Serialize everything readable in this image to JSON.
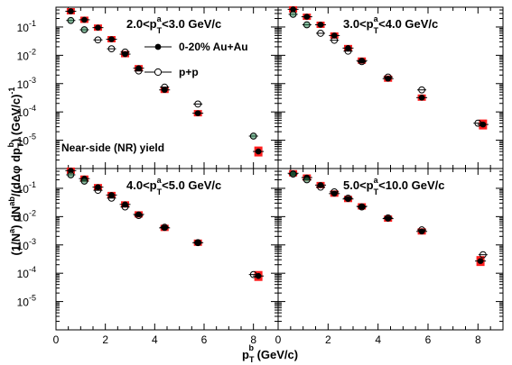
{
  "chart_data": {
    "type": "scatter",
    "layout": "2x2 panels",
    "xlabel": {
      "main": "p",
      "sub": "T",
      "sup": "b",
      "rest": " (GeV/c)"
    },
    "ylabel": {
      "text": "(1/N^a) dN^ab/(dΔφ dp_T^b) (GeV/c)^-1"
    },
    "xlim": [
      0,
      9
    ],
    "ylim": [
      1e-06,
      0.5
    ],
    "y_scale": "log",
    "x_ticks": [
      "0",
      "2",
      "4",
      "6",
      "8"
    ],
    "y_ticks": [
      {
        "value": 1e-05,
        "base": "10",
        "exp": "-5"
      },
      {
        "value": 0.0001,
        "base": "10",
        "exp": "-4"
      },
      {
        "value": 0.001,
        "base": "10",
        "exp": "-3"
      },
      {
        "value": 0.01,
        "base": "10",
        "exp": "-2"
      },
      {
        "value": 0.1,
        "base": "10",
        "exp": "-1"
      }
    ],
    "legend": [
      {
        "label": "0-20% Au+Au",
        "marker": "filled-circle",
        "color": "#000000"
      },
      {
        "label": "p+p",
        "marker": "open-circle",
        "color": "#000000"
      }
    ],
    "legend_position": "top-right of top-left panel",
    "annotation": "Near-side (NR) yield",
    "colors": {
      "syst_box": "#ff1f1f",
      "pp_edge": "#000000",
      "pp_fill_low_pt": "#2e8b57"
    },
    "panels": [
      {
        "label": {
          "lo": "2.0",
          "hi": "3.0 GeV/c",
          "var": "p",
          "sub": "T",
          "sup": "a"
        },
        "auau": {
          "x": [
            0.6,
            1.15,
            1.7,
            2.25,
            2.8,
            3.35,
            4.4,
            5.75,
            8.2
          ],
          "y": [
            0.36,
            0.18,
            0.095,
            0.037,
            0.011,
            0.0035,
            0.0006,
            9e-05,
            4e-06
          ]
        },
        "pp": {
          "x": [
            0.6,
            1.15,
            1.7,
            2.25,
            2.8,
            3.35,
            4.4,
            5.75,
            8.0
          ],
          "y": [
            0.17,
            0.08,
            0.035,
            0.017,
            0.013,
            0.0028,
            0.00075,
            0.00019,
            1.4e-05
          ]
        }
      },
      {
        "label": {
          "lo": "3.0",
          "hi": "4.0 GeV/c",
          "var": "p",
          "sub": "T",
          "sup": "a"
        },
        "auau": {
          "x": [
            0.6,
            1.15,
            1.7,
            2.25,
            2.8,
            3.35,
            4.4,
            5.75,
            8.2
          ],
          "y": [
            0.42,
            0.23,
            0.12,
            0.05,
            0.018,
            0.0065,
            0.0015,
            0.00032,
            3.6e-05
          ]
        },
        "pp": {
          "x": [
            0.6,
            1.15,
            1.7,
            2.25,
            2.8,
            3.35,
            4.4,
            5.75,
            8.0
          ],
          "y": [
            0.28,
            0.12,
            0.06,
            0.034,
            0.014,
            0.006,
            0.0017,
            0.0006,
            4e-05
          ]
        }
      },
      {
        "label": {
          "lo": "4.0",
          "hi": "5.0 GeV/c",
          "var": "p",
          "sub": "T",
          "sup": "a"
        },
        "auau": {
          "x": [
            0.6,
            1.15,
            1.7,
            2.25,
            2.8,
            3.35,
            4.4,
            5.75,
            8.2
          ],
          "y": [
            0.42,
            0.22,
            0.11,
            0.058,
            0.027,
            0.012,
            0.004,
            0.0012,
            8e-05
          ]
        },
        "pp": {
          "x": [
            0.6,
            1.15,
            1.7,
            2.25,
            2.8,
            3.35,
            4.4,
            5.75,
            8.0
          ],
          "y": [
            0.3,
            0.18,
            0.085,
            0.045,
            0.022,
            0.011,
            0.0042,
            0.0012,
            9e-05
          ]
        }
      },
      {
        "label": {
          "lo": "5.0",
          "hi": "10.0 GeV/c",
          "var": "p",
          "sub": "T",
          "sup": "a"
        },
        "auau": {
          "x": [
            0.6,
            1.15,
            1.7,
            2.25,
            2.8,
            3.35,
            4.4,
            5.75,
            8.1
          ],
          "y": [
            0.34,
            0.24,
            0.13,
            0.065,
            0.042,
            0.023,
            0.0085,
            0.003,
            0.00027
          ]
        },
        "pp": {
          "x": [
            0.6,
            1.15,
            1.7,
            2.25,
            2.8,
            3.35,
            4.4,
            5.75,
            8.2
          ],
          "y": [
            0.32,
            0.2,
            0.11,
            0.075,
            0.045,
            0.022,
            0.009,
            0.0034,
            0.00045
          ]
        }
      }
    ]
  }
}
